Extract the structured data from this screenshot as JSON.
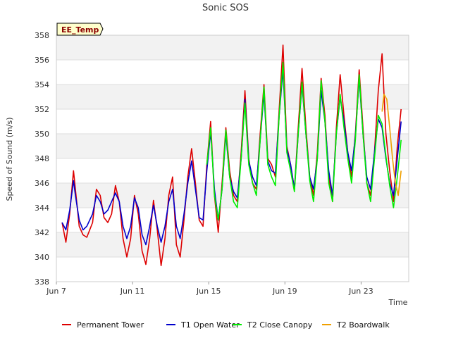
{
  "chart_data": {
    "type": "line",
    "title": "Sonic SOS",
    "xlabel": "Time",
    "ylabel": "Speed of Sound (m/s)",
    "badge": "EE_Temp",
    "ylim": [
      338,
      358
    ],
    "yticks": [
      338,
      340,
      342,
      344,
      346,
      348,
      350,
      352,
      354,
      356,
      358
    ],
    "xlim": [
      7,
      25.5
    ],
    "xticks": [
      {
        "value": 7,
        "label": "Jun 7"
      },
      {
        "value": 11,
        "label": "Jun 11"
      },
      {
        "value": 15,
        "label": "Jun 15"
      },
      {
        "value": 19,
        "label": "Jun 19"
      },
      {
        "value": 23,
        "label": "Jun 23"
      }
    ],
    "grid": true,
    "legend_position": "bottom",
    "series": [
      {
        "name": "Permanent Tower",
        "color": "#dd0000",
        "x": [
          7.3,
          7.5,
          7.7,
          7.9,
          8.0,
          8.2,
          8.4,
          8.6,
          8.9,
          9.1,
          9.3,
          9.5,
          9.7,
          9.9,
          10.1,
          10.3,
          10.5,
          10.7,
          10.9,
          11.1,
          11.3,
          11.5,
          11.7,
          11.9,
          12.1,
          12.3,
          12.5,
          12.7,
          12.9,
          13.1,
          13.3,
          13.5,
          13.7,
          13.9,
          14.1,
          14.3,
          14.5,
          14.7,
          14.9,
          15.1,
          15.3,
          15.5,
          15.7,
          15.9,
          16.1,
          16.3,
          16.5,
          16.7,
          16.9,
          17.1,
          17.3,
          17.5,
          17.7,
          17.9,
          18.1,
          18.3,
          18.5,
          18.7,
          18.9,
          19.1,
          19.3,
          19.5,
          19.7,
          19.9,
          20.1,
          20.3,
          20.5,
          20.7,
          20.9,
          21.1,
          21.3,
          21.5,
          21.7,
          21.9,
          22.1,
          22.3,
          22.5,
          22.7,
          22.9,
          23.1,
          23.3,
          23.5,
          23.7,
          23.9,
          24.1,
          24.3,
          24.5,
          24.7,
          24.9,
          25.1
        ],
        "y": [
          342.8,
          341.2,
          343.5,
          347.0,
          345.5,
          342.5,
          341.8,
          341.6,
          342.8,
          345.5,
          345.0,
          343.2,
          342.8,
          343.5,
          345.8,
          344.5,
          341.5,
          340.0,
          341.5,
          345.0,
          343.5,
          340.5,
          339.4,
          341.5,
          344.6,
          342.2,
          339.3,
          341.5,
          345.0,
          346.5,
          341.0,
          340.0,
          343.0,
          346.5,
          348.8,
          346.0,
          343.0,
          342.5,
          347.5,
          351.0,
          345.0,
          342.0,
          346.0,
          350.5,
          347.0,
          345.0,
          344.5,
          348.5,
          353.5,
          348.0,
          346.0,
          345.5,
          350.0,
          354.0,
          348.0,
          347.5,
          346.5,
          352.0,
          357.2,
          349.0,
          347.5,
          345.5,
          350.5,
          355.3,
          350.5,
          346.5,
          345.0,
          348.5,
          354.5,
          351.5,
          346.5,
          344.5,
          350.5,
          354.8,
          351.5,
          348.5,
          346.5,
          350.0,
          355.2,
          350.5,
          346.0,
          345.0,
          348.5,
          353.5,
          356.5,
          350.0,
          347.0,
          344.5,
          349.0,
          352.0
        ]
      },
      {
        "name": "T1 Open Water",
        "color": "#0000cc",
        "x": [
          7.3,
          7.5,
          7.7,
          7.9,
          8.0,
          8.2,
          8.4,
          8.6,
          8.9,
          9.1,
          9.3,
          9.5,
          9.7,
          9.9,
          10.1,
          10.3,
          10.5,
          10.7,
          10.9,
          11.1,
          11.3,
          11.5,
          11.7,
          11.9,
          12.1,
          12.3,
          12.5,
          12.7,
          12.9,
          13.1,
          13.3,
          13.5,
          13.7,
          13.9,
          14.1,
          14.3,
          14.5,
          14.7,
          14.9,
          15.1,
          15.3,
          15.5,
          15.7,
          15.9,
          16.1,
          16.3,
          16.5,
          16.7,
          16.9,
          17.1,
          17.3,
          17.5,
          17.7,
          17.9,
          18.1,
          18.3,
          18.5,
          18.7,
          18.9,
          19.1,
          19.3,
          19.5,
          19.7,
          19.9,
          20.1,
          20.3,
          20.5,
          20.7,
          20.9,
          21.1,
          21.3,
          21.5,
          21.7,
          21.9,
          22.1,
          22.3,
          22.5,
          22.7,
          22.9,
          23.1,
          23.3,
          23.5,
          23.7,
          23.9,
          24.1,
          24.3,
          24.5,
          24.7,
          24.9,
          25.1
        ],
        "y": [
          342.8,
          342.2,
          343.8,
          346.2,
          345.0,
          343.0,
          342.2,
          342.5,
          343.5,
          345.0,
          344.5,
          343.5,
          343.8,
          344.5,
          345.2,
          344.5,
          342.5,
          341.5,
          342.5,
          344.8,
          344.0,
          341.8,
          341.0,
          342.5,
          344.2,
          342.5,
          341.2,
          342.5,
          344.5,
          345.5,
          342.5,
          341.5,
          343.5,
          346.0,
          347.8,
          345.5,
          343.2,
          343.0,
          347.0,
          350.2,
          345.5,
          343.0,
          345.5,
          350.0,
          346.5,
          345.3,
          344.8,
          348.0,
          352.8,
          347.8,
          346.5,
          345.8,
          349.5,
          353.3,
          347.8,
          347.0,
          346.8,
          351.5,
          355.2,
          348.8,
          347.5,
          345.5,
          350.0,
          354.0,
          350.0,
          346.5,
          345.5,
          348.0,
          353.5,
          351.0,
          347.0,
          345.0,
          350.0,
          353.0,
          351.0,
          348.5,
          347.0,
          349.8,
          354.5,
          350.0,
          346.5,
          345.5,
          348.5,
          351.2,
          350.5,
          348.0,
          346.0,
          345.0,
          348.0,
          351.0
        ]
      },
      {
        "name": "T2 Close Canopy",
        "color": "#00ee00",
        "x": [
          14.9,
          15.1,
          15.3,
          15.5,
          15.7,
          15.9,
          16.1,
          16.3,
          16.5,
          16.7,
          16.9,
          17.1,
          17.3,
          17.5,
          17.7,
          17.9,
          18.1,
          18.3,
          18.5,
          18.7,
          18.9,
          19.1,
          19.3,
          19.5,
          19.7,
          19.9,
          20.1,
          20.3,
          20.5,
          20.7,
          20.9,
          21.1,
          21.3,
          21.5,
          21.7,
          21.9,
          22.1,
          22.3,
          22.5,
          22.7,
          22.9,
          23.1,
          23.3,
          23.5,
          23.7,
          23.9,
          24.1,
          24.3,
          24.5,
          24.7,
          24.9,
          25.1
        ],
        "y": [
          347.5,
          350.5,
          345.0,
          343.0,
          345.5,
          350.3,
          346.5,
          344.5,
          344.0,
          348.0,
          352.5,
          347.5,
          346.0,
          345.0,
          349.5,
          353.8,
          347.5,
          346.5,
          345.8,
          351.5,
          355.8,
          348.5,
          347.0,
          345.3,
          350.0,
          354.2,
          350.0,
          346.2,
          344.5,
          348.0,
          354.3,
          351.0,
          346.0,
          344.5,
          350.0,
          353.2,
          350.5,
          348.0,
          346.0,
          349.5,
          354.8,
          350.0,
          346.0,
          344.5,
          348.0,
          351.5,
          350.8,
          348.2,
          345.8,
          344.0,
          346.5,
          349.5
        ]
      },
      {
        "name": "T2 Boardwalk",
        "color": "#f0a000",
        "x": [
          24.1,
          24.2,
          24.35,
          24.5,
          24.65,
          24.8,
          24.95,
          25.1
        ],
        "y": [
          351.8,
          353.2,
          352.8,
          350.5,
          348.0,
          346.0,
          345.0,
          347.0
        ]
      }
    ]
  }
}
